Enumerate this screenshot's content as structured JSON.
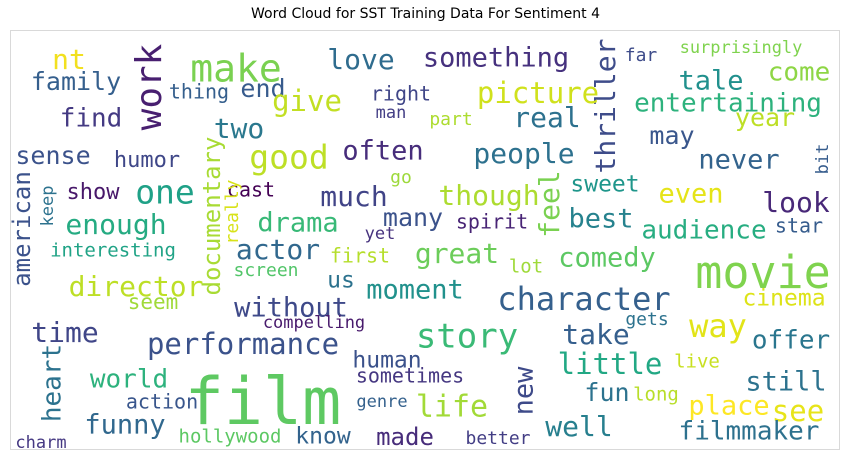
{
  "chart_data": {
    "type": "wordcloud",
    "title": "Word Cloud for SST Training Data For Sentiment 4",
    "words": [
      {
        "text": "nt",
        "color": "#f2e01f"
      },
      {
        "text": "make",
        "color": "#7ad151"
      },
      {
        "text": "love",
        "color": "#2f6c8e"
      },
      {
        "text": "something",
        "color": "#46317e"
      },
      {
        "text": "thriller",
        "color": "#3e4c8a"
      },
      {
        "text": "far",
        "color": "#3e4c8a"
      },
      {
        "text": "surprisingly",
        "color": "#7fd34e"
      },
      {
        "text": "family",
        "color": "#355f8d"
      },
      {
        "text": "work",
        "color": "#481f70"
      },
      {
        "text": "thing",
        "color": "#355f8d"
      },
      {
        "text": "end",
        "color": "#375b8d"
      },
      {
        "text": "right",
        "color": "#404688"
      },
      {
        "text": "picture",
        "color": "#d0e11c"
      },
      {
        "text": "tale",
        "color": "#21908d"
      },
      {
        "text": "come",
        "color": "#8ed645"
      },
      {
        "text": "find",
        "color": "#443a83"
      },
      {
        "text": "give",
        "color": "#c2df23"
      },
      {
        "text": "man",
        "color": "#433e85"
      },
      {
        "text": "part",
        "color": "#addc30"
      },
      {
        "text": "real",
        "color": "#2d718e"
      },
      {
        "text": "entertaining",
        "color": "#2db27d"
      },
      {
        "text": "year",
        "color": "#bddf26"
      },
      {
        "text": "two",
        "color": "#2a788e"
      },
      {
        "text": "may",
        "color": "#39568c"
      },
      {
        "text": "sense",
        "color": "#3b528b"
      },
      {
        "text": "humor",
        "color": "#3f4788"
      },
      {
        "text": "good",
        "color": "#bddf26"
      },
      {
        "text": "often",
        "color": "#472d7b"
      },
      {
        "text": "people",
        "color": "#2d718e"
      },
      {
        "text": "never",
        "color": "#33638d"
      },
      {
        "text": "bit",
        "color": "#365c8d"
      },
      {
        "text": "documentary",
        "color": "#a8db34"
      },
      {
        "text": "one",
        "color": "#1fa187"
      },
      {
        "text": "show",
        "color": "#48186a"
      },
      {
        "text": "cast",
        "color": "#440154"
      },
      {
        "text": "much",
        "color": "#414487"
      },
      {
        "text": "go",
        "color": "#9dd93b"
      },
      {
        "text": "though",
        "color": "#addc30"
      },
      {
        "text": "feel",
        "color": "#7ad151"
      },
      {
        "text": "sweet",
        "color": "#1f968b"
      },
      {
        "text": "even",
        "color": "#e5e419"
      },
      {
        "text": "american",
        "color": "#3b528b"
      },
      {
        "text": "keep",
        "color": "#2c728e"
      },
      {
        "text": "really",
        "color": "#d8e219"
      },
      {
        "text": "look",
        "color": "#482878"
      },
      {
        "text": "enough",
        "color": "#25ab82"
      },
      {
        "text": "drama",
        "color": "#38b977"
      },
      {
        "text": "many",
        "color": "#3b528b"
      },
      {
        "text": "spirit",
        "color": "#482475"
      },
      {
        "text": "best",
        "color": "#26828e"
      },
      {
        "text": "audience",
        "color": "#27ad81"
      },
      {
        "text": "star",
        "color": "#365c8d"
      },
      {
        "text": "interesting",
        "color": "#20a386"
      },
      {
        "text": "yet",
        "color": "#46327e"
      },
      {
        "text": "actor",
        "color": "#31688e"
      },
      {
        "text": "first",
        "color": "#b5de2b"
      },
      {
        "text": "great",
        "color": "#6ccd5a"
      },
      {
        "text": "comedy",
        "color": "#5cc863"
      },
      {
        "text": "movie",
        "color": "#7fd34e"
      },
      {
        "text": "director",
        "color": "#bddf26"
      },
      {
        "text": "lot",
        "color": "#9fda3a"
      },
      {
        "text": "screen",
        "color": "#52c569"
      },
      {
        "text": "us",
        "color": "#2c728e"
      },
      {
        "text": "moment",
        "color": "#21918c"
      },
      {
        "text": "character",
        "color": "#35608d"
      },
      {
        "text": "cinema",
        "color": "#dde318"
      },
      {
        "text": "seem",
        "color": "#a0da39"
      },
      {
        "text": "without",
        "color": "#3e4989"
      },
      {
        "text": "time",
        "color": "#404688"
      },
      {
        "text": "compelling",
        "color": "#481a6c"
      },
      {
        "text": "story",
        "color": "#3aba76"
      },
      {
        "text": "take",
        "color": "#355f8d"
      },
      {
        "text": "gets",
        "color": "#2c728e"
      },
      {
        "text": "way",
        "color": "#e2e418"
      },
      {
        "text": "offer",
        "color": "#2a768e"
      },
      {
        "text": "performance",
        "color": "#3b528b"
      },
      {
        "text": "human",
        "color": "#3b528b"
      },
      {
        "text": "little",
        "color": "#22a884"
      },
      {
        "text": "heart",
        "color": "#2c728e"
      },
      {
        "text": "world",
        "color": "#2db27d"
      },
      {
        "text": "film",
        "color": "#5ec962"
      },
      {
        "text": "sometimes",
        "color": "#453781"
      },
      {
        "text": "new",
        "color": "#3e4a89"
      },
      {
        "text": "live",
        "color": "#c8e020"
      },
      {
        "text": "fun",
        "color": "#2c728e"
      },
      {
        "text": "still",
        "color": "#2c728e"
      },
      {
        "text": "funny",
        "color": "#31688e"
      },
      {
        "text": "action",
        "color": "#39568c"
      },
      {
        "text": "genre",
        "color": "#34618d"
      },
      {
        "text": "life",
        "color": "#a2da37"
      },
      {
        "text": "long",
        "color": "#b8de29"
      },
      {
        "text": "place",
        "color": "#fde725"
      },
      {
        "text": "see",
        "color": "#e7e419"
      },
      {
        "text": "charm",
        "color": "#453882"
      },
      {
        "text": "hollywood",
        "color": "#5cc863"
      },
      {
        "text": "know",
        "color": "#33638d"
      },
      {
        "text": "made",
        "color": "#472c7a"
      },
      {
        "text": "better",
        "color": "#433e85"
      },
      {
        "text": "well",
        "color": "#277f8e"
      },
      {
        "text": "filmmaker",
        "color": "#2d718e"
      }
    ]
  }
}
